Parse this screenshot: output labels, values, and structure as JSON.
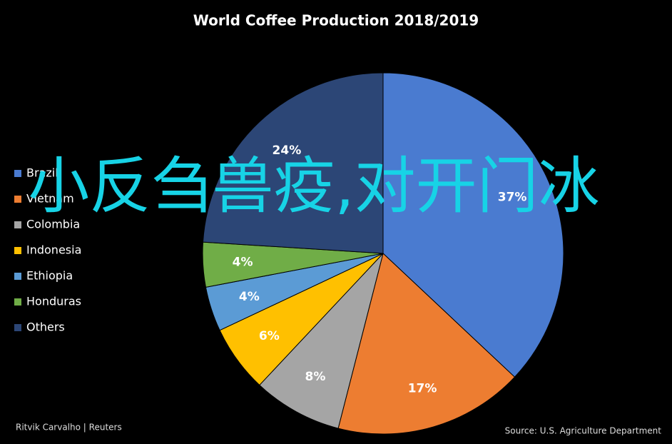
{
  "chart_data": {
    "type": "pie",
    "title": "World Coffee Production 2018/2019",
    "categories": [
      "Brazil",
      "Vietnam",
      "Colombia",
      "Indonesia",
      "Ethiopia",
      "Honduras",
      "Others"
    ],
    "values": [
      37,
      17,
      8,
      6,
      4,
      4,
      24
    ],
    "value_labels": [
      "37%",
      "17%",
      "8%",
      "6%",
      "4%",
      "4%",
      "24%"
    ],
    "colors": [
      "#4a7bd0",
      "#ed7d31",
      "#a5a5a5",
      "#ffc000",
      "#5b9bd5",
      "#70ad47",
      "#2c4676"
    ],
    "legend": "left",
    "credit": "Ritvik Carvalho | Reuters",
    "source": "Source: U.S. Agriculture Department"
  },
  "overlay_text": "小反刍兽疫,对开门冰"
}
